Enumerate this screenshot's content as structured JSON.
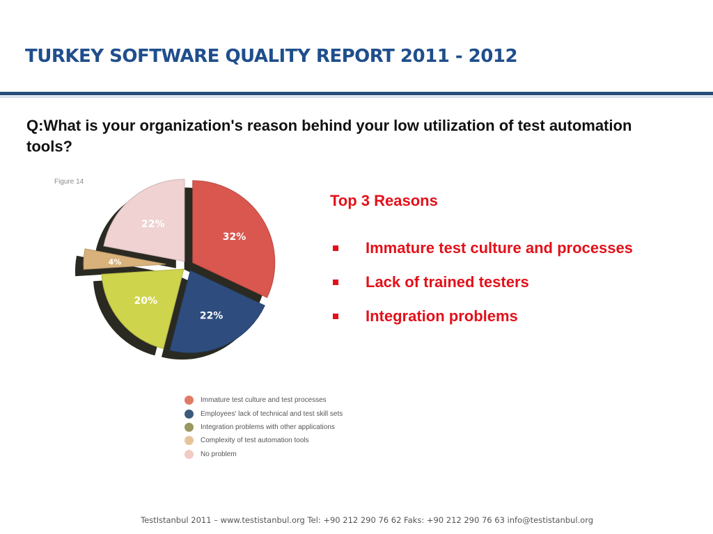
{
  "slide": {
    "title": "TURKEY SOFTWARE QUALITY REPORT 2011 - 2012",
    "question": "Q:What is your organization's reason behind your low utilization of test automation tools?",
    "footer": "TestIstanbul 2011 – www.testistanbul.org  Tel: +90 212 290 76 62 Faks: +90 212 290 76 63 info@testistanbul.org"
  },
  "figure_label": "Figure 14",
  "reasons": {
    "heading": "Top 3 Reasons",
    "items": [
      "Immature test culture and processes",
      "Lack of trained testers",
      "Integration problems"
    ]
  },
  "chart_data": {
    "type": "pie",
    "title": "",
    "categories": [
      "Immature test culture and test processes",
      "Employees' lack of technical and test skill sets",
      "Integration problems with other applications",
      "Complexity of test automation tools",
      "No problem"
    ],
    "values": [
      32,
      22,
      20,
      4,
      22
    ],
    "labels": [
      "32%",
      "22%",
      "20%",
      "4%",
      "22%"
    ],
    "colors": [
      "#d9574f",
      "#2e4d7e",
      "#cfd44d",
      "#d8b27a",
      "#f0d2d2"
    ],
    "legend_colors": [
      "#e07a62",
      "#3c5a7c",
      "#9a9760",
      "#e7c39b",
      "#f2c9c3"
    ],
    "legend_position": "bottom",
    "exploded": true,
    "style": "3d"
  }
}
